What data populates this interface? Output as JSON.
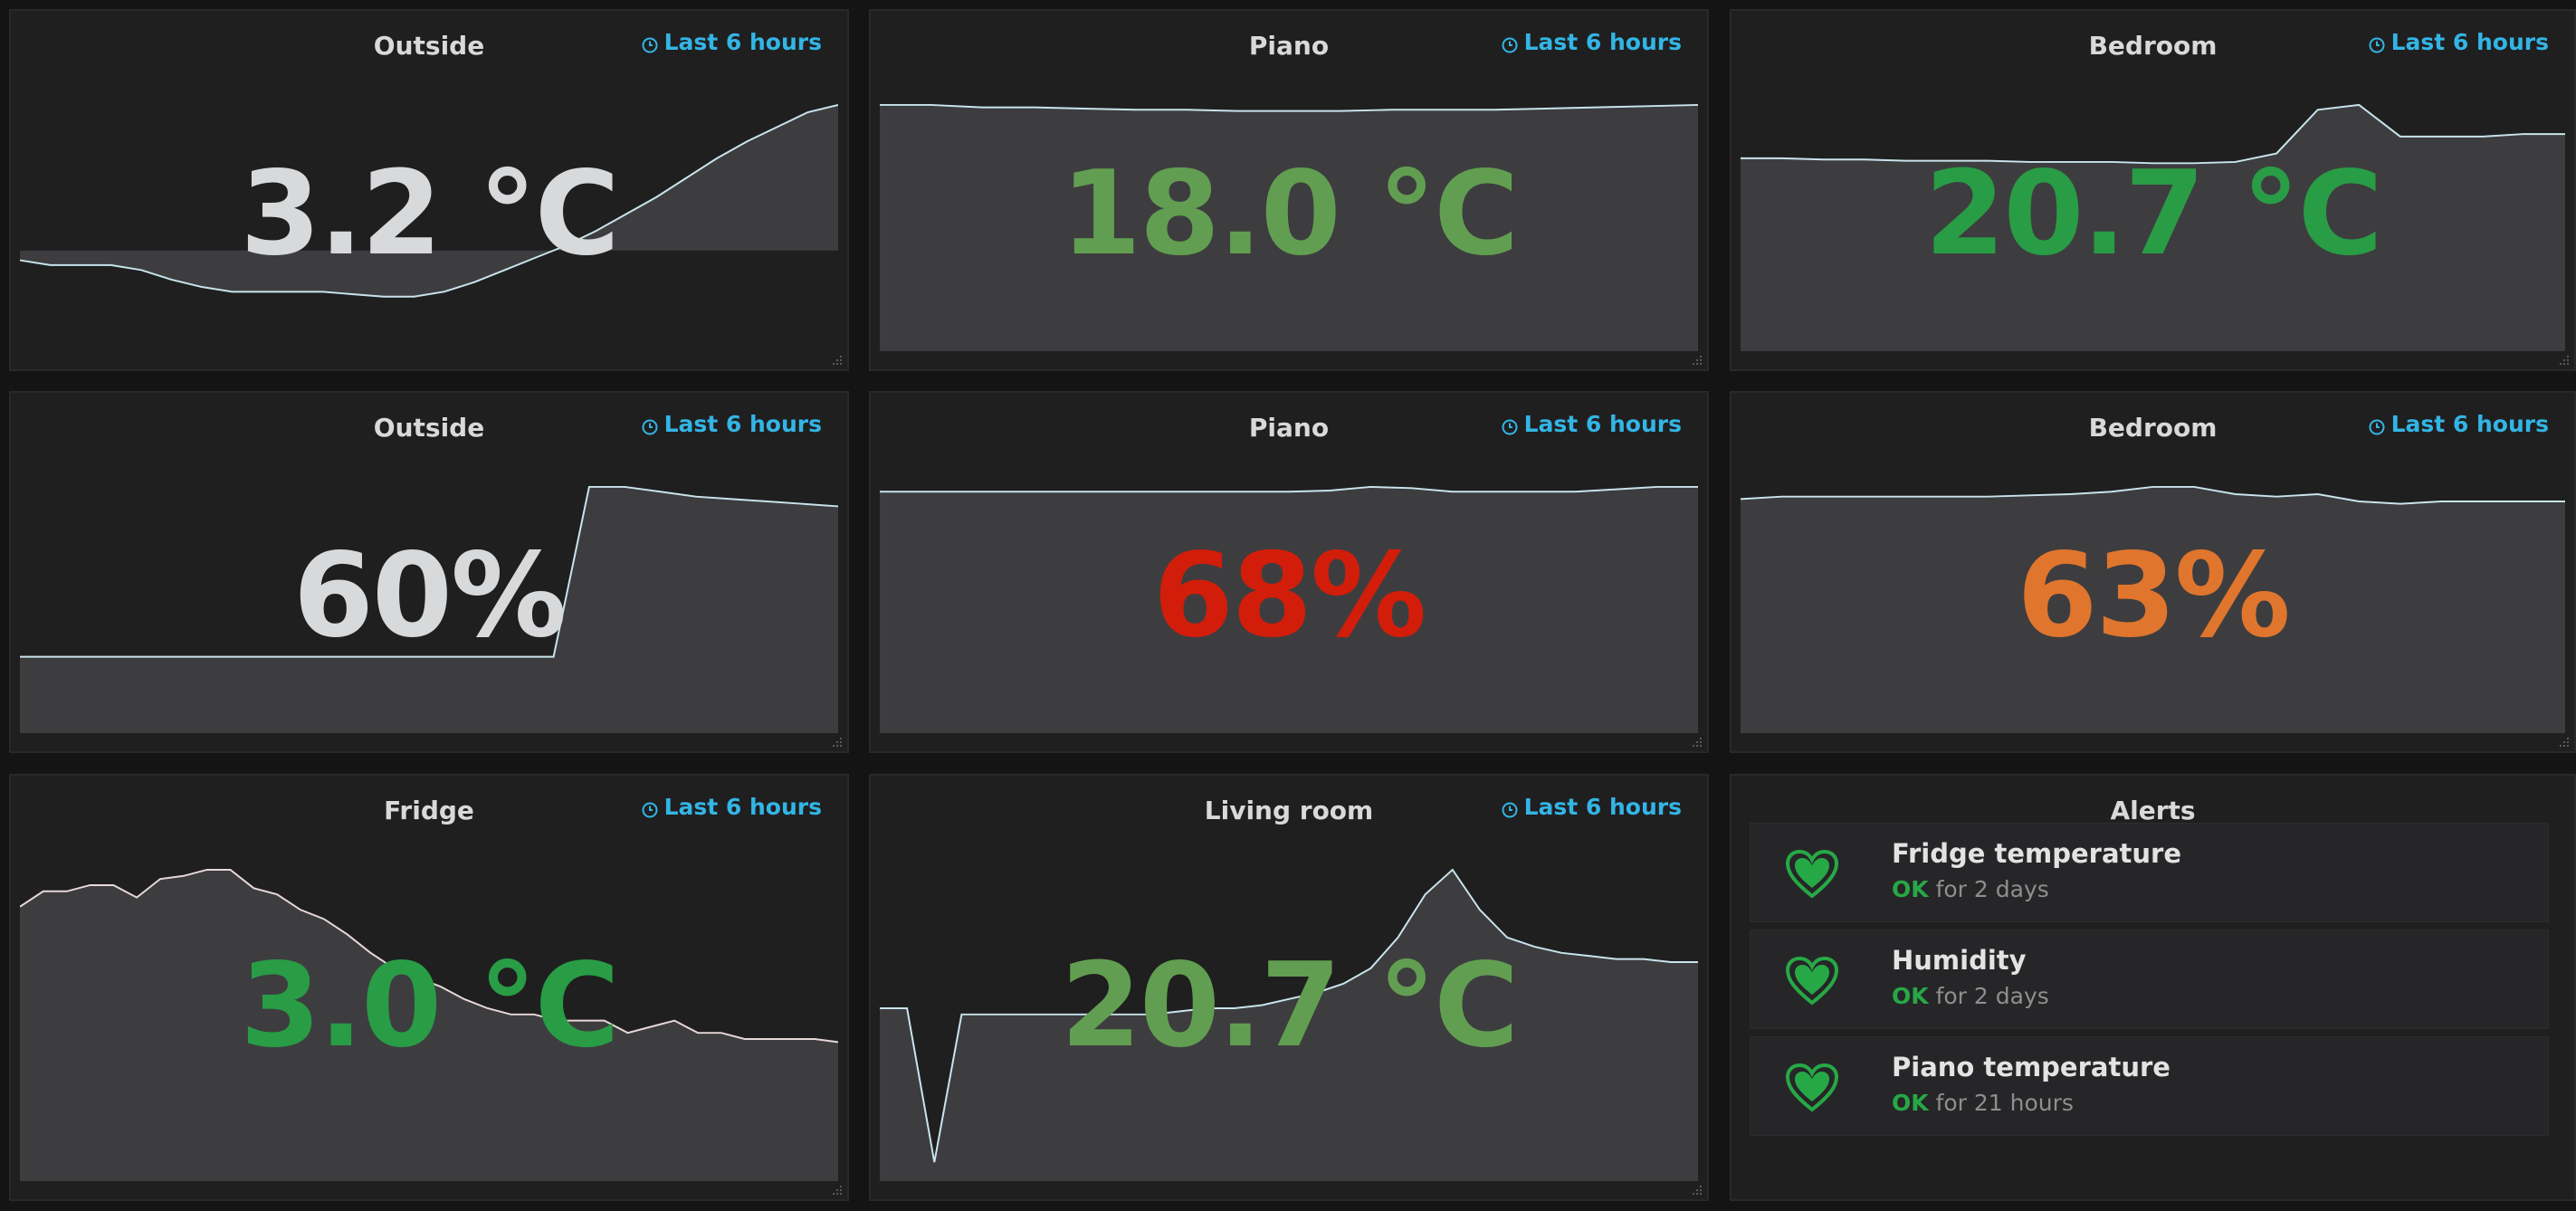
{
  "colors": {
    "neutral": "#d8d9da",
    "green": "#299c46",
    "light_green": "#629e51",
    "red": "#d21d0a",
    "orange": "#e0752d",
    "time": "#33b5e5",
    "ok": "#27a846"
  },
  "icons": {
    "clock": "clock-icon",
    "resize": "resize-icon",
    "alert": "heart-icon"
  },
  "panels": [
    {
      "title": "Outside",
      "time": "Last 6 hours",
      "value": "3.2 °C",
      "color": "neutral",
      "series": [
        0.64,
        0.66,
        0.66,
        0.66,
        0.68,
        0.72,
        0.75,
        0.77,
        0.77,
        0.77,
        0.77,
        0.78,
        0.79,
        0.79,
        0.77,
        0.73,
        0.68,
        0.63,
        0.58,
        0.52,
        0.45,
        0.38,
        0.3,
        0.22,
        0.15,
        0.09,
        0.03,
        0.0
      ],
      "baseline": 0.6
    },
    {
      "title": "Piano",
      "time": "Last 6 hours",
      "value": "18.0 °C",
      "color": "light_green",
      "series": [
        0.0,
        0.0,
        0.01,
        0.01,
        0.015,
        0.02,
        0.02,
        0.025,
        0.025,
        0.025,
        0.02,
        0.02,
        0.02,
        0.015,
        0.01,
        0.005,
        0.0
      ]
    },
    {
      "title": "Bedroom",
      "time": "Last 6 hours",
      "value": "20.7 °C",
      "color": "green",
      "series": [
        0.22,
        0.22,
        0.225,
        0.225,
        0.23,
        0.23,
        0.23,
        0.235,
        0.235,
        0.235,
        0.24,
        0.24,
        0.235,
        0.2,
        0.02,
        0.0,
        0.13,
        0.13,
        0.13,
        0.12,
        0.12
      ]
    },
    {
      "title": "Outside",
      "time": "Last 6 hours",
      "value": "60%",
      "color": "neutral",
      "series": [
        0.7,
        0.7,
        0.7,
        0.7,
        0.7,
        0.7,
        0.7,
        0.7,
        0.7,
        0.7,
        0.7,
        0.7,
        0.7,
        0.7,
        0.7,
        0.7,
        0.0,
        0.0,
        0.02,
        0.04,
        0.05,
        0.06,
        0.07,
        0.08
      ]
    },
    {
      "title": "Piano",
      "time": "Last 6 hours",
      "value": "68%",
      "color": "red",
      "series": [
        0.02,
        0.02,
        0.02,
        0.02,
        0.02,
        0.02,
        0.02,
        0.02,
        0.02,
        0.02,
        0.02,
        0.015,
        0.0,
        0.005,
        0.02,
        0.02,
        0.02,
        0.02,
        0.01,
        0.0,
        0.0
      ]
    },
    {
      "title": "Bedroom",
      "time": "Last 6 hours",
      "value": "63%",
      "color": "orange",
      "series": [
        0.05,
        0.04,
        0.04,
        0.04,
        0.04,
        0.04,
        0.04,
        0.035,
        0.03,
        0.02,
        0.0,
        0.0,
        0.03,
        0.04,
        0.03,
        0.06,
        0.07,
        0.06,
        0.06,
        0.06,
        0.06
      ]
    },
    {
      "title": "Fridge",
      "time": "Last 6 hours",
      "value": "3.0 °C",
      "color": "green",
      "series": [
        0.12,
        0.07,
        0.07,
        0.05,
        0.05,
        0.09,
        0.03,
        0.02,
        0.0,
        0.0,
        0.06,
        0.08,
        0.13,
        0.16,
        0.21,
        0.27,
        0.32,
        0.35,
        0.38,
        0.42,
        0.45,
        0.47,
        0.47,
        0.49,
        0.49,
        0.49,
        0.53,
        0.51,
        0.49,
        0.53,
        0.53,
        0.55,
        0.55,
        0.55,
        0.55,
        0.56
      ]
    },
    {
      "title": "Living room",
      "time": "Last 6 hours",
      "value": "20.7 °C",
      "color": "light_green",
      "series": [
        0.45,
        0.45,
        0.95,
        0.47,
        0.47,
        0.47,
        0.47,
        0.47,
        0.47,
        0.47,
        0.47,
        0.46,
        0.45,
        0.45,
        0.44,
        0.42,
        0.4,
        0.37,
        0.32,
        0.22,
        0.08,
        0.0,
        0.13,
        0.22,
        0.25,
        0.27,
        0.28,
        0.29,
        0.29,
        0.3,
        0.3
      ]
    }
  ],
  "alerts": {
    "title": "Alerts",
    "items": [
      {
        "name": "Fridge temperature",
        "state": "OK",
        "duration": "for 2 days"
      },
      {
        "name": "Humidity",
        "state": "OK",
        "duration": "for 2 days"
      },
      {
        "name": "Piano temperature",
        "state": "OK",
        "duration": "for 21 hours"
      }
    ]
  }
}
